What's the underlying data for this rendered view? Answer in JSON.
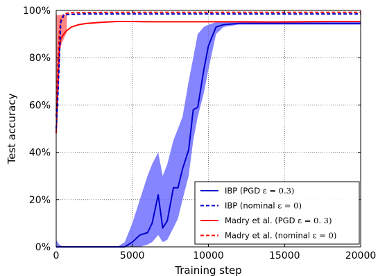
{
  "chart_data": {
    "type": "line",
    "xlabel": "Training step",
    "ylabel": "Test accuracy",
    "xlim": [
      0,
      20000
    ],
    "ylim": [
      0,
      100
    ],
    "xticks": [
      0,
      5000,
      10000,
      15000,
      20000
    ],
    "xtick_labels": [
      "0",
      "5000",
      "10000",
      "15000",
      "20000"
    ],
    "yticks": [
      0,
      20,
      40,
      60,
      80,
      100
    ],
    "ytick_labels": [
      "0%",
      "20%",
      "40%",
      "60%",
      "80%",
      "100%"
    ],
    "grid": true,
    "legend_position": "bottom-right",
    "series": [
      {
        "name": "IBP (PGD ε = 0.3)",
        "legend_main": "IBP (PGD ",
        "legend_math": "ε = 0.3)",
        "color": "#0000cc",
        "style": "solid",
        "x": [
          0,
          200,
          500,
          1000,
          2000,
          3000,
          4000,
          4500,
          5000,
          5500,
          6000,
          6300,
          6700,
          7000,
          7300,
          7700,
          8000,
          8300,
          8700,
          9000,
          9300,
          9700,
          10000,
          10500,
          11000,
          12000,
          14000,
          16000,
          18000,
          20000
        ],
        "y": [
          0,
          0,
          0,
          0,
          0,
          0,
          0,
          0,
          2,
          5,
          6,
          10,
          22,
          8,
          11,
          25,
          25,
          33,
          41,
          58,
          59,
          75,
          85,
          93,
          94,
          94.5,
          94.5,
          94.5,
          94.5,
          94.5
        ]
      },
      {
        "name": "IBP (nominal ε = 0)",
        "legend_main": "IBP (nominal ",
        "legend_math": "ε = 0)",
        "color": "#0000cc",
        "style": "dashed",
        "x": [
          0,
          100,
          200,
          300,
          500,
          700,
          1000,
          2000,
          4000,
          6000,
          8000,
          10000,
          12000,
          14000,
          16000,
          18000,
          20000
        ],
        "y": [
          50,
          62,
          78,
          95,
          98,
          98.2,
          98.3,
          98.5,
          98.5,
          98.5,
          98.5,
          98.5,
          98.5,
          98.5,
          98.5,
          98.5,
          98.5
        ]
      },
      {
        "name": "Madry et al. (PGD ε = 0.3)",
        "legend_main": "Madry et al. (PGD ",
        "legend_math": "ε = 0. 3)",
        "color": "#ff0000",
        "style": "solid",
        "x": [
          0,
          100,
          200,
          300,
          500,
          700,
          1000,
          1500,
          2000,
          3000,
          4000,
          5000,
          6000,
          8000,
          10000,
          12000,
          14000,
          16000,
          18000,
          20000
        ],
        "y": [
          48,
          65,
          82,
          88,
          90,
          91.5,
          93,
          94,
          94.5,
          95,
          95.3,
          95.3,
          95.2,
          95.2,
          95.2,
          95.2,
          95.1,
          95.2,
          95.3,
          95.3
        ]
      },
      {
        "name": "Madry et al. (nominal ε = 0)",
        "legend_main": "Madry et al. (nominal ",
        "legend_math": "ε = 0)",
        "color": "#ff0000",
        "style": "dashed",
        "x": [
          0,
          100,
          200,
          300,
          500,
          700,
          1000,
          2000,
          4000,
          6000,
          8000,
          10000,
          12000,
          14000,
          16000,
          18000,
          20000
        ],
        "y": [
          55,
          75,
          90,
          96,
          98.5,
          98.8,
          99,
          99.1,
          99.2,
          99.2,
          99.2,
          99.2,
          99.2,
          99.2,
          99.2,
          99.2,
          99.2
        ]
      }
    ],
    "bands": [
      {
        "color": "#6666ff",
        "x": [
          0,
          200,
          500,
          1000,
          2000,
          3000,
          4000,
          4500,
          5000,
          5500,
          6000,
          6300,
          6700,
          7000,
          7300,
          7700,
          8000,
          8300,
          8700,
          9000,
          9300,
          9700,
          10000,
          10500,
          11000,
          12000,
          14000,
          16000,
          18000,
          20000
        ],
        "y_low": [
          0,
          0,
          0,
          0,
          0,
          0,
          0,
          0,
          0,
          0,
          1,
          2,
          5,
          2,
          3,
          8,
          12,
          20,
          30,
          45,
          55,
          65,
          75,
          90,
          93,
          94,
          94,
          94,
          94,
          94
        ],
        "y_high": [
          3,
          1,
          0,
          0,
          0,
          0,
          0,
          2,
          10,
          20,
          30,
          35,
          40,
          30,
          35,
          45,
          50,
          55,
          70,
          80,
          90,
          93,
          94,
          95,
          95,
          95,
          95,
          95,
          95,
          95
        ]
      },
      {
        "color": "#ff6666",
        "x": [
          0,
          100,
          200,
          300,
          500,
          700
        ],
        "y_low": [
          45,
          60,
          80,
          85,
          88,
          91
        ],
        "y_high": [
          98,
          98,
          98,
          98,
          98,
          98
        ]
      }
    ]
  }
}
